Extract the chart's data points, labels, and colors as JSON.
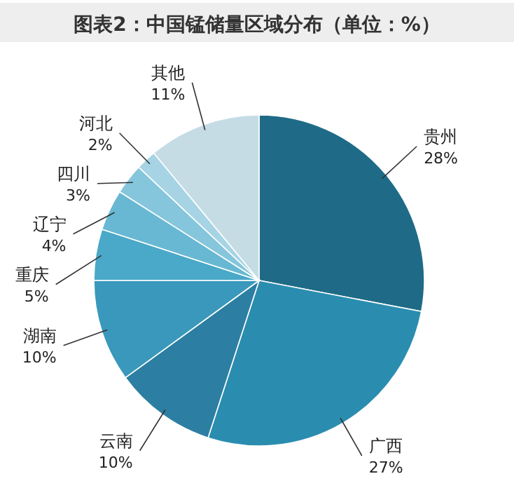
{
  "chart_data": {
    "type": "pie",
    "title": "图表2：中国锰储量区域分布（单位：%）",
    "categories": [
      "贵州",
      "广西",
      "云南",
      "湖南",
      "重庆",
      "辽宁",
      "四川",
      "河北",
      "其他"
    ],
    "values": [
      28,
      27,
      10,
      10,
      5,
      4,
      3,
      2,
      11
    ],
    "colors": [
      "#1f6b87",
      "#2a8db0",
      "#2c7fa2",
      "#3998bb",
      "#4aa8c8",
      "#68b8d3",
      "#86c6dc",
      "#a6d4e4",
      "#c5dce5"
    ],
    "value_labels": [
      "28%",
      "27%",
      "10%",
      "10%",
      "5%",
      "4%",
      "3%",
      "2%",
      "11%"
    ]
  }
}
